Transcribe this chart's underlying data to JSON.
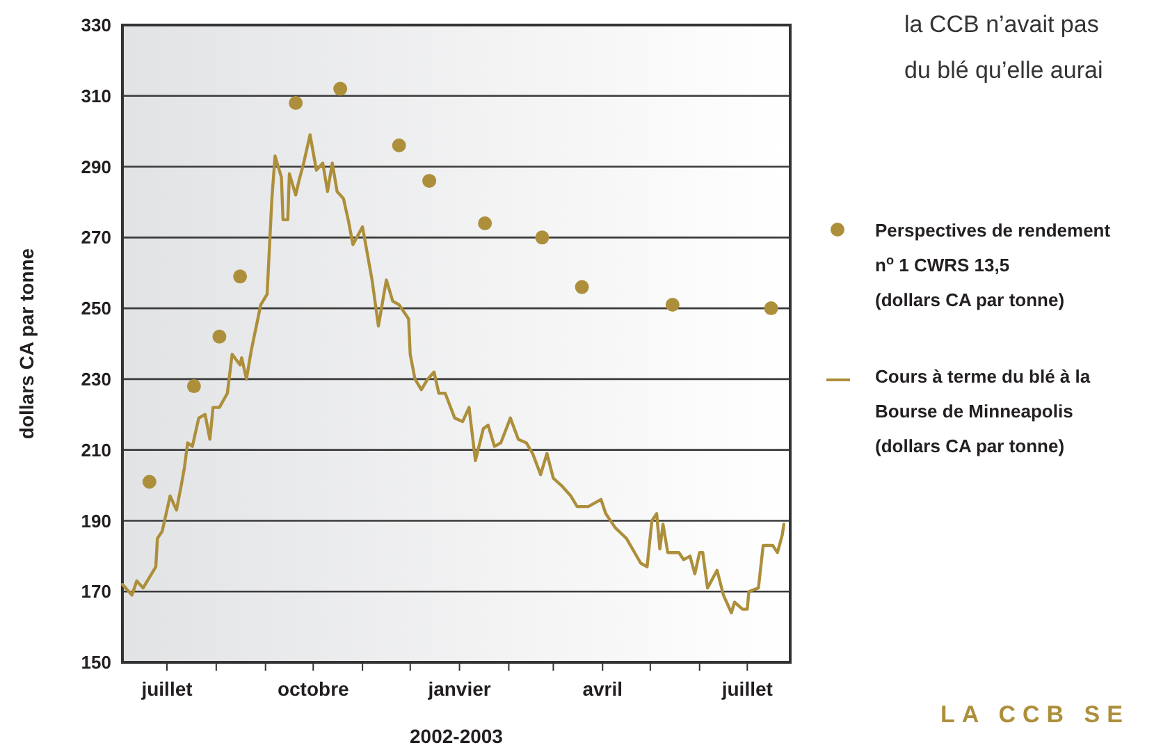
{
  "chart_data": {
    "type": "line",
    "xlabel": "2002-2003",
    "ylabel": "dollars CA par tonne",
    "xlim": [
      "2002-06-03",
      "2003-07-28"
    ],
    "xticks": [
      {
        "value": "2002-07-01",
        "label": "juillet"
      },
      {
        "value": "2002-08-01",
        "label": null
      },
      {
        "value": "2002-09-01",
        "label": null
      },
      {
        "value": "2002-10-01",
        "label": "octobre"
      },
      {
        "value": "2002-11-01",
        "label": null
      },
      {
        "value": "2002-12-01",
        "label": null
      },
      {
        "value": "2003-01-01",
        "label": "janvier"
      },
      {
        "value": "2003-02-01",
        "label": null
      },
      {
        "value": "2003-03-01",
        "label": null
      },
      {
        "value": "2003-04-01",
        "label": "avril"
      },
      {
        "value": "2003-05-01",
        "label": null
      },
      {
        "value": "2003-06-01",
        "label": null
      },
      {
        "value": "2003-07-01",
        "label": "juillet"
      }
    ],
    "ylim": [
      150,
      330
    ],
    "yticks": [
      150,
      170,
      190,
      210,
      230,
      250,
      270,
      290,
      310,
      330
    ],
    "grid": "y",
    "legend": "right",
    "series": [
      {
        "type": "scatter",
        "marker": "circle",
        "name": "Perspectives de rendement n$^{o}$ 1 CWRS 13,5 (dollars CA par tonne)",
        "color": "#ad8f3b",
        "x": [
          "2002-06-20",
          "2002-07-18",
          "2002-08-03",
          "2002-08-16",
          "2002-09-20",
          "2002-10-18",
          "2002-11-24",
          "2002-12-13",
          "2003-01-17",
          "2003-02-22",
          "2003-03-19",
          "2003-05-15",
          "2003-07-16"
        ],
        "values": [
          201,
          228,
          242,
          259,
          308,
          312,
          296,
          286,
          274,
          270,
          256,
          251,
          250
        ]
      },
      {
        "line_style": "solid",
        "name": "Cours à terme du blé à la Bourse de Minneapolis (dollars CA par tonne)",
        "color": "#ad8f3b",
        "x": [
          "2002-06-03",
          "2002-06-09",
          "2002-06-12",
          "2002-06-16",
          "2002-06-24",
          "2002-06-25",
          "2002-06-28",
          "2002-07-03",
          "2002-07-07",
          "2002-07-10",
          "2002-07-12",
          "2002-07-14",
          "2002-07-17",
          "2002-07-21",
          "2002-07-25",
          "2002-07-28",
          "2002-07-30",
          "2002-08-03",
          "2002-08-08",
          "2002-08-11",
          "2002-08-16",
          "2002-08-17",
          "2002-08-20",
          "2002-08-23",
          "2002-08-29",
          "2002-09-02",
          "2002-09-05",
          "2002-09-07",
          "2002-09-11",
          "2002-09-12",
          "2002-09-15",
          "2002-09-16",
          "2002-09-20",
          "2002-09-22",
          "2002-09-25",
          "2002-09-29",
          "2002-10-03",
          "2002-10-07",
          "2002-10-10",
          "2002-10-13",
          "2002-10-16",
          "2002-10-20",
          "2002-10-23",
          "2002-10-26",
          "2002-11-01",
          "2002-11-07",
          "2002-11-11",
          "2002-11-16",
          "2002-11-20",
          "2002-11-24",
          "2002-11-30",
          "2002-12-01",
          "2002-12-04",
          "2002-12-08",
          "2002-12-12",
          "2002-12-16",
          "2002-12-19",
          "2002-12-23",
          "2002-12-29",
          "2003-01-03",
          "2003-01-07",
          "2003-01-11",
          "2003-01-16",
          "2003-01-19",
          "2003-01-23",
          "2003-01-27",
          "2003-02-02",
          "2003-02-07",
          "2003-02-12",
          "2003-02-16",
          "2003-02-21",
          "2003-02-25",
          "2003-03-01",
          "2003-03-06",
          "2003-03-12",
          "2003-03-16",
          "2003-03-23",
          "2003-03-31",
          "2003-04-03",
          "2003-04-09",
          "2003-04-16",
          "2003-04-25",
          "2003-04-29",
          "2003-05-02",
          "2003-05-05",
          "2003-05-07",
          "2003-05-09",
          "2003-05-12",
          "2003-05-19",
          "2003-05-22",
          "2003-05-26",
          "2003-05-29",
          "2003-06-01",
          "2003-06-03",
          "2003-06-06",
          "2003-06-12",
          "2003-06-16",
          "2003-06-21",
          "2003-06-23",
          "2003-06-28",
          "2003-07-01",
          "2003-07-02",
          "2003-07-08",
          "2003-07-11",
          "2003-07-17",
          "2003-07-20",
          "2003-07-23",
          "2003-07-24"
        ],
        "values": [
          172,
          169,
          173,
          171,
          177,
          185,
          187,
          197,
          193,
          200,
          205,
          212,
          211,
          219,
          220,
          213,
          222,
          222,
          226,
          237,
          234,
          236,
          230,
          238,
          251,
          254,
          281,
          293,
          287,
          275,
          275,
          288,
          282,
          286,
          291,
          299,
          289,
          291,
          283,
          291,
          283,
          281,
          275,
          268,
          273,
          258,
          245,
          258,
          252,
          251,
          247,
          237,
          230,
          227,
          230,
          232,
          226,
          226,
          219,
          218,
          222,
          207,
          216,
          217,
          211,
          212,
          219,
          213,
          212,
          209,
          203,
          209,
          202,
          200,
          197,
          194,
          194,
          196,
          192,
          188,
          185,
          178,
          177,
          190,
          192,
          182,
          189,
          181,
          181,
          179,
          180,
          175,
          181,
          181,
          171,
          176,
          169,
          164,
          167,
          165,
          165,
          170,
          171,
          183,
          183,
          181,
          186,
          189
        ]
      }
    ],
    "annotations": [
      "la CCB n’avait pas",
      "du blé qu’elle aurai",
      "LA CCB SE"
    ]
  }
}
